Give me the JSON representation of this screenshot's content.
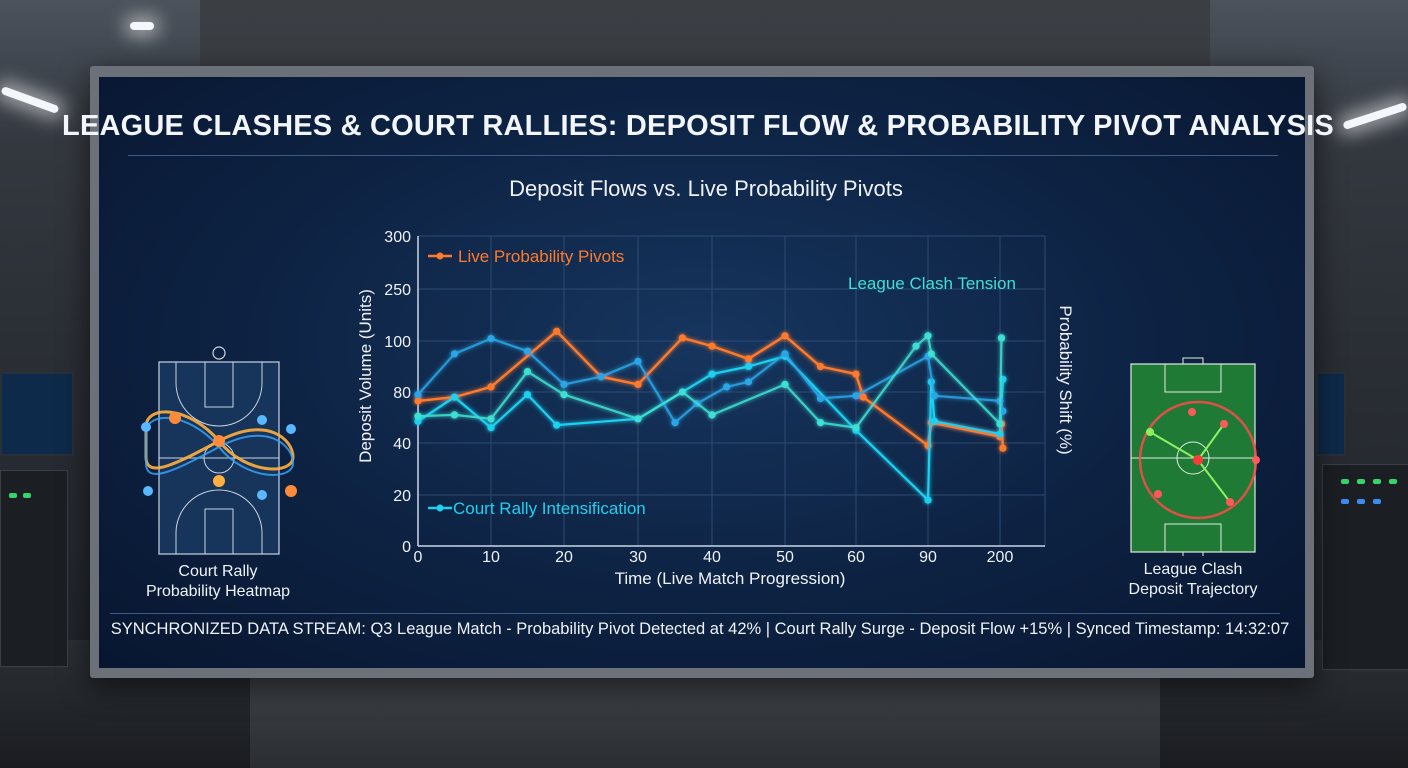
{
  "header": {
    "title": "LEAGUE CLASHES & COURT RALLIES: DEPOSIT FLOW & PROBABILITY PIVOT ANALYSIS"
  },
  "chart_data": {
    "type": "line",
    "title": "Deposit Flows vs. Live Probability Pivots",
    "xlabel": "Time (Live Match Progression)",
    "ylabel": "Deposit Volume (Units)",
    "y2label": "Probability Shift (%)",
    "categories": [
      "0",
      "10",
      "20",
      "30",
      "40",
      "50",
      "60",
      "90",
      "200"
    ],
    "yticks": [
      "0",
      "20",
      "40",
      "80",
      "100",
      "250",
      "300"
    ],
    "grid": true,
    "legend": [
      "Live Probability Pivots",
      "Court Rally Intensification"
    ],
    "annotation": "League Clash Tension",
    "colors": {
      "orange": "#ff7a2a",
      "cyan": "#1fd0f0",
      "blue": "#2aa6e6",
      "teal": "#3ee0d4"
    },
    "series": [
      {
        "name": "Live Probability Pivots",
        "color": "orange",
        "values": [
          [
            0,
            73
          ],
          [
            5,
            76
          ],
          [
            10,
            82
          ],
          [
            19,
            128
          ],
          [
            25,
            86
          ],
          [
            30,
            83
          ],
          [
            36,
            109
          ],
          [
            40,
            98
          ],
          [
            45,
            93
          ],
          [
            50,
            115
          ],
          [
            55,
            90
          ],
          [
            60,
            87
          ],
          [
            63,
            76
          ],
          [
            90,
            39
          ],
          [
            95,
            56
          ],
          [
            200,
            45
          ],
          [
            205,
            55
          ],
          [
            210,
            38
          ]
        ]
      },
      {
        "name": "Court Rally Intensification",
        "color": "cyan",
        "values": [
          [
            0,
            57
          ],
          [
            5,
            76
          ],
          [
            10,
            52
          ],
          [
            15,
            78
          ],
          [
            19,
            54
          ],
          [
            30,
            59
          ],
          [
            40,
            87
          ],
          [
            45,
            90
          ],
          [
            50,
            94
          ],
          [
            60,
            50
          ],
          [
            90,
            18
          ],
          [
            95,
            84
          ],
          [
            100,
            57
          ],
          [
            200,
            47
          ],
          [
            210,
            85
          ]
        ]
      },
      {
        "name": "",
        "color": "blue",
        "values": [
          [
            0,
            78
          ],
          [
            5,
            95
          ],
          [
            10,
            107
          ],
          [
            15,
            96
          ],
          [
            20,
            83
          ],
          [
            25,
            86
          ],
          [
            30,
            92
          ],
          [
            35,
            56
          ],
          [
            38,
            71
          ],
          [
            42,
            82
          ],
          [
            45,
            84
          ],
          [
            50,
            95
          ],
          [
            55,
            75
          ],
          [
            60,
            77
          ],
          [
            90,
            94
          ],
          [
            100,
            77
          ],
          [
            200,
            73
          ],
          [
            210,
            65
          ]
        ]
      },
      {
        "name": "",
        "color": "teal",
        "values": [
          [
            0,
            61
          ],
          [
            5,
            62
          ],
          [
            10,
            59
          ],
          [
            15,
            88
          ],
          [
            20,
            78
          ],
          [
            30,
            59
          ],
          [
            36,
            80
          ],
          [
            40,
            62
          ],
          [
            50,
            83
          ],
          [
            55,
            56
          ],
          [
            60,
            52
          ],
          [
            85,
            98
          ],
          [
            90,
            115
          ],
          [
            95,
            95
          ],
          [
            200,
            55
          ],
          [
            205,
            109
          ]
        ]
      }
    ]
  },
  "left_panel": {
    "caption_line1": "Court Rally",
    "caption_line2": "Probability Heatmap"
  },
  "right_panel": {
    "caption_line1": "League Clash",
    "caption_line2": "Deposit Trajectory"
  },
  "footer": {
    "ticker": "SYNCHRONIZED DATA STREAM: Q3 League Match - Probability Pivot Detected at 42% | Court Rally Surge - Deposit Flow +15% | Synced Timestamp: 14:32:07"
  }
}
